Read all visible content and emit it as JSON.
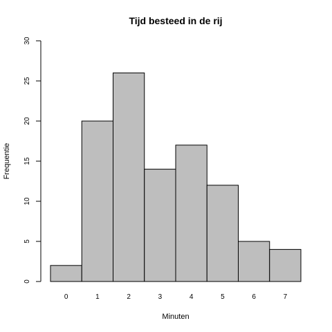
{
  "chart_data": {
    "type": "bar",
    "title": "Tijd besteed in de rij",
    "xlabel": "Minuten",
    "ylabel": "Frequentie",
    "categories": [
      "0",
      "1",
      "2",
      "3",
      "4",
      "5",
      "6",
      "7"
    ],
    "values": [
      2,
      20,
      26,
      14,
      17,
      12,
      5,
      4
    ],
    "ylim": [
      0,
      30
    ],
    "yticks": [
      0,
      5,
      10,
      15,
      20,
      25,
      30
    ],
    "grid": false,
    "colors": {
      "bar_fill": "#bebebe",
      "bar_stroke": "#000000"
    }
  }
}
